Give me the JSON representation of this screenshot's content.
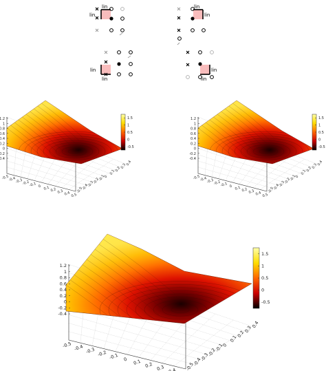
{
  "stencil": {
    "lin_label": "lin"
  },
  "surface_small": {
    "colorbar_ticks": [
      "1.5",
      "1",
      "0.5",
      "0",
      "-0.5"
    ],
    "z_ticks": [
      "1.2",
      "1",
      "0.8",
      "0.6",
      "0.4",
      "0.2",
      "0",
      "-0.2",
      "-0.4"
    ],
    "x_ticks": [
      "-0.5",
      "-0.4",
      "-0.3",
      "-0.2",
      "-0.1",
      "0",
      "0.1",
      "0.2",
      "0.3",
      "0.4",
      "0.5"
    ],
    "y_ticks": [
      "0.4",
      "0.3",
      "0.2",
      "0.1",
      "0",
      "-0.1",
      "-0.2",
      "-0.3",
      "-0.4",
      "-0.5"
    ]
  },
  "surface_large": {
    "colorbar_ticks": [
      "1.5",
      "1",
      "0.5",
      "0",
      "-0.5"
    ],
    "z_ticks": [
      "1.2",
      "1",
      "0.8",
      "0.6",
      "0.4",
      "0.2",
      "0",
      "-0.2",
      "-0.4"
    ],
    "x_ticks": [
      "-0.5",
      "-0.4",
      "-0.3",
      "-0.2",
      "-0.1",
      "0",
      "0.1",
      "0.2",
      "0.3",
      "0.4",
      "0.5"
    ],
    "y_ticks": [
      "0.4",
      "0.3",
      "0.2",
      "0.1",
      "0",
      "-0.1",
      "-0.2",
      "-0.3",
      "-0.4",
      "-0.5"
    ]
  }
}
